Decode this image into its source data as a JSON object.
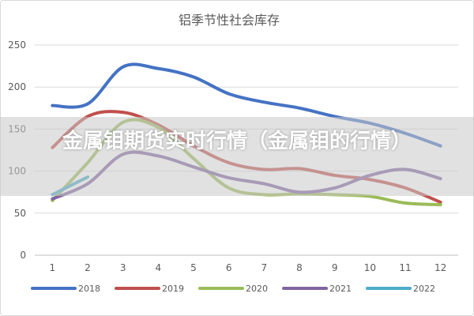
{
  "overlay": {
    "banner_text": "金属钼期货实时行情（金属钼的行情）"
  },
  "chart_data": {
    "type": "line",
    "title": "铝季节性社会库存",
    "xlabel": "",
    "ylabel": "",
    "categories": [
      "1",
      "2",
      "3",
      "4",
      "5",
      "6",
      "7",
      "8",
      "9",
      "10",
      "11",
      "12"
    ],
    "ylim": [
      0,
      250
    ],
    "yticks": [
      0,
      50,
      100,
      150,
      200,
      250
    ],
    "grid": true,
    "legend_position": "bottom",
    "series": [
      {
        "name": "2018",
        "color": "#4472c4",
        "values": [
          178,
          180,
          224,
          222,
          212,
          192,
          182,
          175,
          165,
          157,
          145,
          130
        ]
      },
      {
        "name": "2019",
        "color": "#c0504d",
        "values": [
          128,
          165,
          170,
          155,
          130,
          110,
          102,
          103,
          95,
          90,
          80,
          63
        ]
      },
      {
        "name": "2020",
        "color": "#9bbb59",
        "values": [
          65,
          110,
          158,
          152,
          115,
          80,
          72,
          73,
          72,
          70,
          62,
          60
        ]
      },
      {
        "name": "2021",
        "color": "#8064a2",
        "values": [
          67,
          85,
          120,
          118,
          105,
          92,
          85,
          75,
          80,
          95,
          102,
          91
        ]
      },
      {
        "name": "2022",
        "color": "#4bacc6",
        "values": [
          72,
          93,
          null,
          null,
          null,
          null,
          null,
          null,
          null,
          null,
          null,
          null
        ]
      }
    ]
  }
}
